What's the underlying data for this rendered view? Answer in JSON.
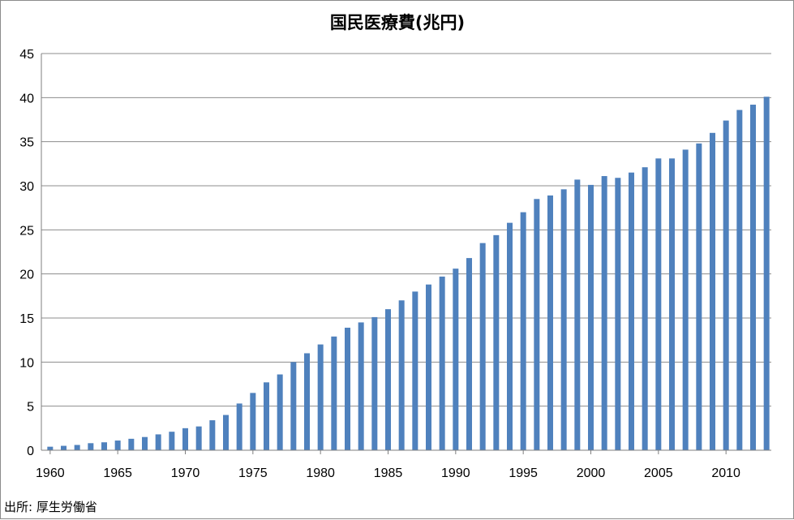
{
  "chart_data": {
    "type": "bar",
    "title": "国民医療費(兆円)",
    "xlabel": "",
    "ylabel": "",
    "x": [
      1960,
      1961,
      1962,
      1963,
      1964,
      1965,
      1966,
      1967,
      1968,
      1969,
      1970,
      1971,
      1972,
      1973,
      1974,
      1975,
      1976,
      1977,
      1978,
      1979,
      1980,
      1981,
      1982,
      1983,
      1984,
      1985,
      1986,
      1987,
      1988,
      1989,
      1990,
      1991,
      1992,
      1993,
      1994,
      1995,
      1996,
      1997,
      1998,
      1999,
      2000,
      2001,
      2002,
      2003,
      2004,
      2005,
      2006,
      2007,
      2008,
      2009,
      2010,
      2011,
      2012,
      2013
    ],
    "values": [
      0.4,
      0.5,
      0.6,
      0.8,
      0.9,
      1.1,
      1.3,
      1.5,
      1.8,
      2.1,
      2.5,
      2.7,
      3.4,
      4.0,
      5.3,
      6.5,
      7.7,
      8.6,
      10.0,
      11.0,
      12.0,
      12.9,
      13.9,
      14.5,
      15.1,
      16.0,
      17.0,
      18.0,
      18.8,
      19.7,
      20.6,
      21.8,
      23.5,
      24.4,
      25.8,
      27.0,
      28.5,
      28.9,
      29.6,
      30.7,
      30.1,
      31.1,
      30.9,
      31.5,
      32.1,
      33.1,
      33.1,
      34.1,
      34.8,
      36.0,
      37.4,
      38.6,
      39.2,
      40.1
    ],
    "xticks": [
      "1960",
      "1965",
      "1970",
      "1975",
      "1980",
      "1985",
      "1990",
      "1995",
      "2000",
      "2005",
      "2010"
    ],
    "yticks": [
      "0",
      "5",
      "10",
      "15",
      "20",
      "25",
      "30",
      "35",
      "40",
      "45"
    ],
    "xlim": [
      1960,
      2013
    ],
    "ylim": [
      0,
      45
    ],
    "grid": true,
    "bar_color": "#4f81bd",
    "grid_color": "#8c8c8c"
  },
  "source_note": "出所: 厚生労働省"
}
